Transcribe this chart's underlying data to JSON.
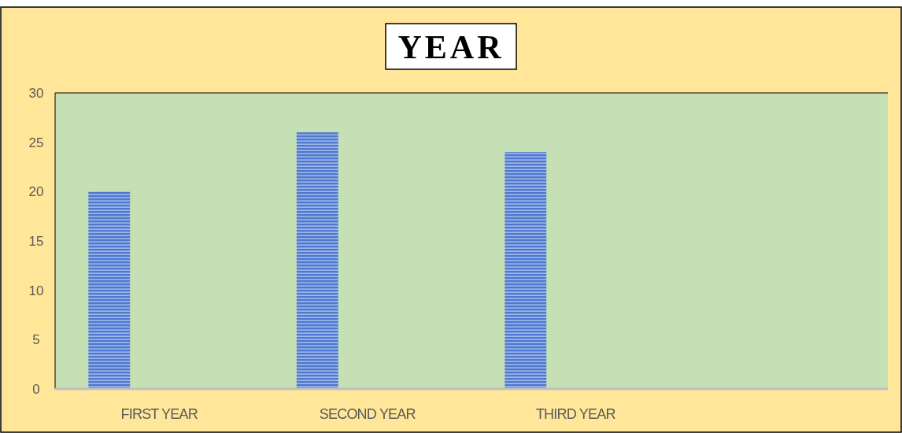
{
  "chart_data": {
    "type": "bar",
    "title": "YEAR",
    "categories": [
      "FIRST YEAR",
      "SECOND YEAR",
      "THIRD YEAR",
      null
    ],
    "values": [
      20,
      26,
      24,
      null
    ],
    "color": "#4f78d0",
    "ylim": [
      0,
      30
    ],
    "yticks": [
      0,
      5,
      10,
      15,
      20,
      25,
      30
    ],
    "grid": false
  }
}
